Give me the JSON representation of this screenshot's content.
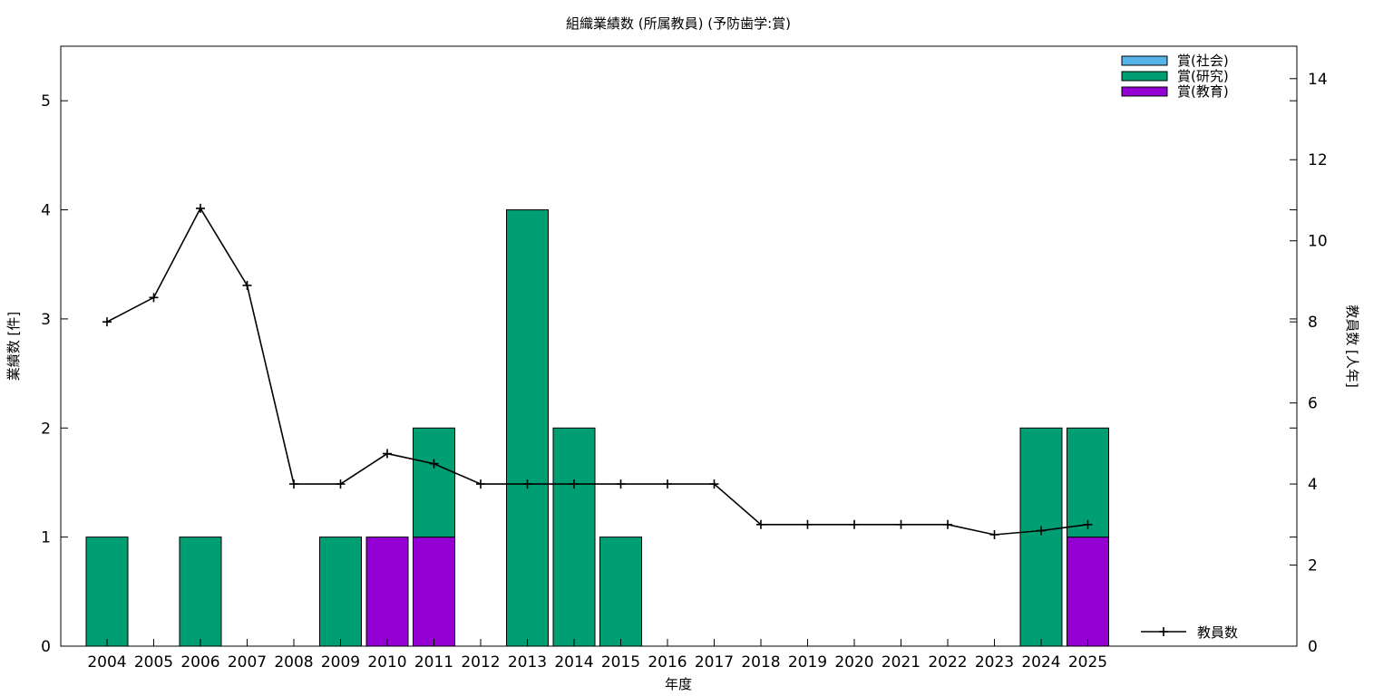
{
  "chart_data": {
    "type": "bar",
    "title": "組織業績数 (所属教員) (予防歯学:賞)",
    "xlabel": "年度",
    "ylabel": "業績数 [件]",
    "y2label": "教員数 [人年]",
    "ylim": [
      0,
      5.5
    ],
    "y2lim": [
      0,
      14.8
    ],
    "yticks": [
      0,
      1,
      2,
      3,
      4,
      5
    ],
    "y2ticks": [
      0,
      2,
      4,
      6,
      8,
      10,
      12,
      14
    ],
    "legend_position": "top-right",
    "categories": [
      "2004",
      "2005",
      "2006",
      "2007",
      "2008",
      "2009",
      "2010",
      "2011",
      "2012",
      "2013",
      "2014",
      "2015",
      "2016",
      "2017",
      "2018",
      "2019",
      "2020",
      "2021",
      "2022",
      "2023",
      "2024",
      "2025"
    ],
    "series": [
      {
        "name": "賞(社会)",
        "color": "#56b4e9",
        "values": [
          0,
          0,
          0,
          0,
          0,
          0,
          0,
          0,
          0,
          0,
          0,
          0,
          0,
          0,
          0,
          0,
          0,
          0,
          0,
          0,
          0,
          0
        ]
      },
      {
        "name": "賞(研究)",
        "color": "#009e73",
        "values": [
          1,
          0,
          1,
          0,
          0,
          1,
          0,
          1,
          0,
          4,
          2,
          1,
          0,
          0,
          0,
          0,
          0,
          0,
          0,
          0,
          2,
          1
        ]
      },
      {
        "name": "賞(教育)",
        "color": "#9400d3",
        "values": [
          0,
          0,
          0,
          0,
          0,
          0,
          1,
          1,
          0,
          0,
          0,
          0,
          0,
          0,
          0,
          0,
          0,
          0,
          0,
          0,
          0,
          1
        ]
      }
    ],
    "stack_order": [
      "賞(教育)",
      "賞(研究)",
      "賞(社会)"
    ],
    "line_series": {
      "name": "教員数",
      "axis": "y2",
      "color": "#000000",
      "values": [
        8.0,
        8.6,
        10.8,
        8.9,
        4.0,
        4.0,
        4.75,
        4.5,
        4.0,
        4.0,
        4.0,
        4.0,
        4.0,
        4.0,
        3.0,
        3.0,
        3.0,
        3.0,
        3.0,
        2.75,
        2.85,
        3.0
      ]
    }
  }
}
